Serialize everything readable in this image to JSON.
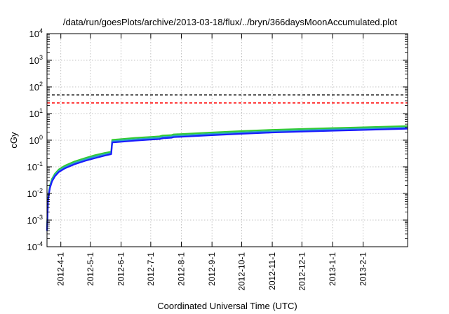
{
  "chart_data": {
    "type": "line",
    "title": "/data/run/goesPlots/archive/2013-03-18/flux/../bryn/366daysMoonAccumulated.plot",
    "xlabel": "Coordinated Universal Time (UTC)",
    "ylabel": "cGy",
    "y_scale": "log",
    "ylim": [
      0.0001,
      10000
    ],
    "y_ticks": [
      {
        "value": 0.0001,
        "base": "10",
        "exp": "-4"
      },
      {
        "value": 0.001,
        "base": "10",
        "exp": "-3"
      },
      {
        "value": 0.01,
        "base": "10",
        "exp": "-2"
      },
      {
        "value": 0.1,
        "base": "10",
        "exp": "-1"
      },
      {
        "value": 1,
        "base": "10",
        "exp": "0"
      },
      {
        "value": 10,
        "base": "10",
        "exp": "1"
      },
      {
        "value": 100,
        "base": "10",
        "exp": "2"
      },
      {
        "value": 1000,
        "base": "10",
        "exp": "3"
      },
      {
        "value": 10000,
        "base": "10",
        "exp": "4"
      }
    ],
    "xlim": [
      "2012-03-18",
      "2013-03-18"
    ],
    "x_ticks": [
      "2012-4-1",
      "2012-5-1",
      "2012-6-1",
      "2012-7-1",
      "2012-8-1",
      "2012-9-1",
      "2012-10-1",
      "2012-11-1",
      "2012-12-1",
      "2013-1-1",
      "2013-2-1"
    ],
    "x_tick_dates": [
      "2012-04-01",
      "2012-05-01",
      "2012-06-01",
      "2012-07-01",
      "2012-08-01",
      "2012-09-01",
      "2012-10-01",
      "2012-11-01",
      "2012-12-01",
      "2013-01-01",
      "2013-02-01"
    ],
    "grid": true,
    "reference_lines": [
      {
        "value": 50,
        "color": "#000000",
        "style": "dashed"
      },
      {
        "value": 25,
        "color": "#ff0000",
        "style": "dashed"
      }
    ],
    "series": [
      {
        "color": "#33cc33",
        "points": [
          [
            "2012-03-18",
            0.0004
          ],
          [
            "2012-03-19",
            0.006
          ],
          [
            "2012-03-20",
            0.012
          ],
          [
            "2012-03-21",
            0.02
          ],
          [
            "2012-03-23",
            0.035
          ],
          [
            "2012-03-26",
            0.055
          ],
          [
            "2012-03-30",
            0.08
          ],
          [
            "2012-04-05",
            0.11
          ],
          [
            "2012-04-15",
            0.16
          ],
          [
            "2012-04-25",
            0.21
          ],
          [
            "2012-05-05",
            0.27
          ],
          [
            "2012-05-15",
            0.33
          ],
          [
            "2012-05-22",
            0.37
          ],
          [
            "2012-05-23",
            1.03
          ],
          [
            "2012-06-01",
            1.1
          ],
          [
            "2012-06-15",
            1.22
          ],
          [
            "2012-07-01",
            1.33
          ],
          [
            "2012-07-10",
            1.4
          ],
          [
            "2012-07-13",
            1.5
          ],
          [
            "2012-07-22",
            1.55
          ],
          [
            "2012-07-24",
            1.65
          ],
          [
            "2012-08-01",
            1.7
          ],
          [
            "2012-09-01",
            1.95
          ],
          [
            "2012-10-01",
            2.2
          ],
          [
            "2012-11-01",
            2.45
          ],
          [
            "2012-12-01",
            2.65
          ],
          [
            "2013-01-01",
            2.85
          ],
          [
            "2013-02-01",
            3.05
          ],
          [
            "2013-03-18",
            3.4
          ]
        ]
      },
      {
        "color": "#2aa0c8",
        "points": [
          [
            "2012-03-18",
            0.0004
          ],
          [
            "2012-03-19",
            0.0055
          ],
          [
            "2012-03-20",
            0.011
          ],
          [
            "2012-03-21",
            0.018
          ],
          [
            "2012-03-23",
            0.031
          ],
          [
            "2012-03-26",
            0.049
          ],
          [
            "2012-03-30",
            0.071
          ],
          [
            "2012-04-05",
            0.097
          ],
          [
            "2012-04-15",
            0.14
          ],
          [
            "2012-04-25",
            0.185
          ],
          [
            "2012-05-05",
            0.24
          ],
          [
            "2012-05-15",
            0.29
          ],
          [
            "2012-05-22",
            0.33
          ],
          [
            "2012-05-23",
            0.91
          ],
          [
            "2012-06-01",
            0.97
          ],
          [
            "2012-06-15",
            1.07
          ],
          [
            "2012-07-01",
            1.17
          ],
          [
            "2012-07-10",
            1.23
          ],
          [
            "2012-07-13",
            1.32
          ],
          [
            "2012-07-22",
            1.37
          ],
          [
            "2012-07-24",
            1.45
          ],
          [
            "2012-08-01",
            1.5
          ],
          [
            "2012-09-01",
            1.72
          ],
          [
            "2012-10-01",
            1.94
          ],
          [
            "2012-11-01",
            2.16
          ],
          [
            "2012-12-01",
            2.34
          ],
          [
            "2013-01-01",
            2.52
          ],
          [
            "2013-02-01",
            2.7
          ],
          [
            "2013-03-18",
            3.0
          ]
        ]
      },
      {
        "color": "#1a1aff",
        "points": [
          [
            "2012-03-18",
            0.0004
          ],
          [
            "2012-03-19",
            0.005
          ],
          [
            "2012-03-20",
            0.01
          ],
          [
            "2012-03-21",
            0.016
          ],
          [
            "2012-03-23",
            0.028
          ],
          [
            "2012-03-26",
            0.044
          ],
          [
            "2012-03-30",
            0.064
          ],
          [
            "2012-04-05",
            0.087
          ],
          [
            "2012-04-15",
            0.125
          ],
          [
            "2012-04-25",
            0.165
          ],
          [
            "2012-05-05",
            0.21
          ],
          [
            "2012-05-15",
            0.26
          ],
          [
            "2012-05-22",
            0.3
          ],
          [
            "2012-05-23",
            0.82
          ],
          [
            "2012-06-01",
            0.87
          ],
          [
            "2012-06-15",
            0.96
          ],
          [
            "2012-07-01",
            1.05
          ],
          [
            "2012-07-10",
            1.1
          ],
          [
            "2012-07-13",
            1.18
          ],
          [
            "2012-07-22",
            1.23
          ],
          [
            "2012-07-24",
            1.3
          ],
          [
            "2012-08-01",
            1.34
          ],
          [
            "2012-09-01",
            1.54
          ],
          [
            "2012-10-01",
            1.74
          ],
          [
            "2012-11-01",
            1.94
          ],
          [
            "2012-12-01",
            2.1
          ],
          [
            "2013-01-01",
            2.26
          ],
          [
            "2013-02-01",
            2.42
          ],
          [
            "2013-03-18",
            2.7
          ]
        ]
      }
    ]
  }
}
